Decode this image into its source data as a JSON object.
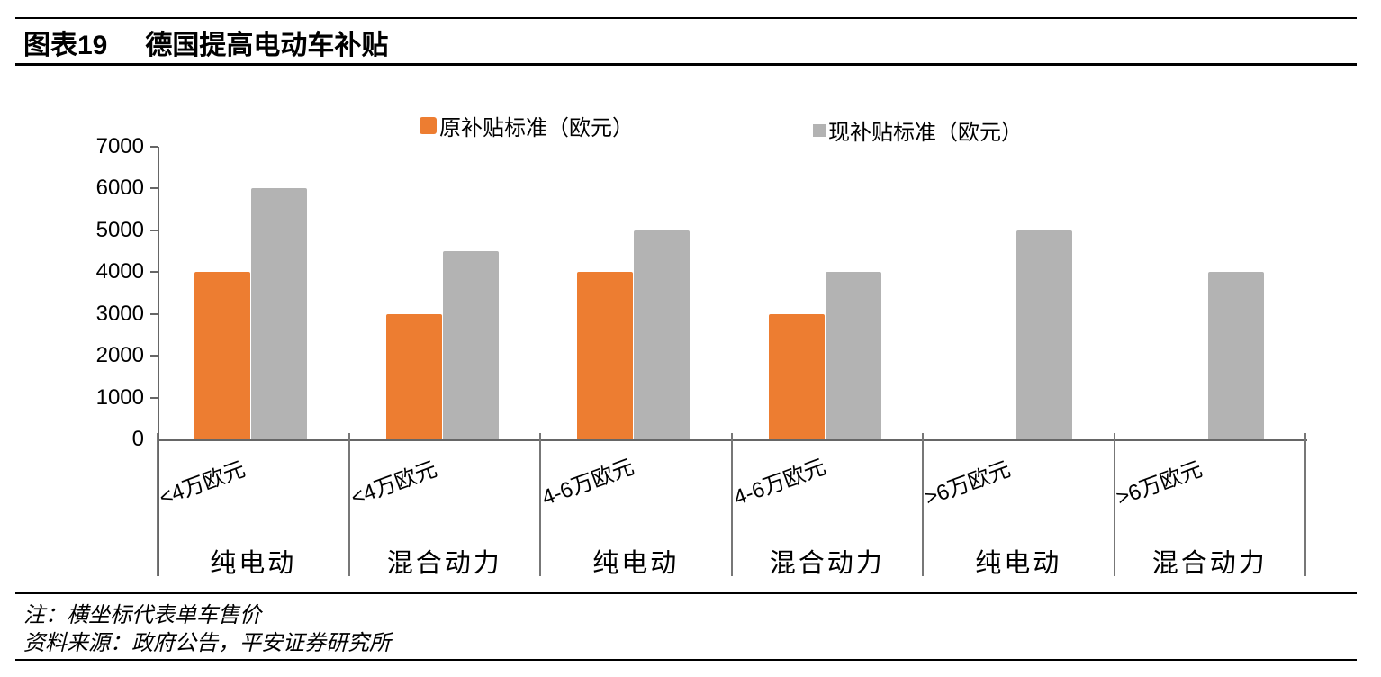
{
  "header": {
    "chart_label": "图表19",
    "title": "德国提高电动车补贴"
  },
  "legend": [
    {
      "name": "original-subsidy",
      "label": "原补贴标准（欧元）",
      "color": "#ED7D31"
    },
    {
      "name": "current-subsidy",
      "label": "现补贴标准（欧元）",
      "color": "#B3B3B3"
    }
  ],
  "chart_data": {
    "type": "bar",
    "title": "德国提高电动车补贴",
    "categories": [
      {
        "price": "<4万欧元",
        "type": "纯电动"
      },
      {
        "price": "<4万欧元",
        "type": "混合动力"
      },
      {
        "price": "4-6万欧元",
        "type": "纯电动"
      },
      {
        "price": "4-6万欧元",
        "type": "混合动力"
      },
      {
        "price": ">6万欧元",
        "type": "纯电动"
      },
      {
        "price": ">6万欧元",
        "type": "混合动力"
      }
    ],
    "series": [
      {
        "name": "原补贴标准（欧元）",
        "color": "#ED7D31",
        "values": [
          4000,
          3000,
          4000,
          3000,
          0,
          0
        ]
      },
      {
        "name": "现补贴标准（欧元）",
        "color": "#B3B3B3",
        "values": [
          6000,
          4500,
          5000,
          4000,
          5000,
          4000
        ]
      }
    ],
    "y_axis": {
      "min": 0,
      "max": 7000,
      "step": 1000,
      "ticks": [
        7000,
        6000,
        5000,
        4000,
        3000,
        2000,
        1000,
        0
      ]
    },
    "xlabel": "",
    "ylabel": "",
    "grid": false,
    "legend_position": "top"
  },
  "notes": {
    "note": "注：横坐标代表单车售价",
    "source": "资料来源：政府公告，平安证券研究所"
  }
}
